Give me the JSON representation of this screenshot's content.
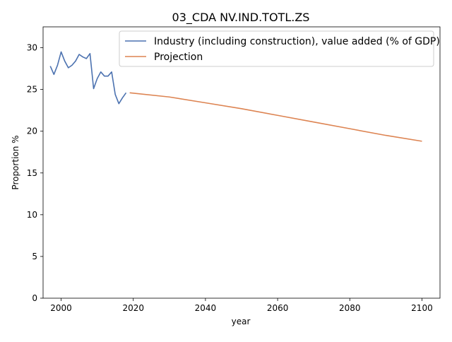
{
  "chart_data": {
    "type": "line",
    "title": "03_CDA NV.IND.TOTL.ZS",
    "xlabel": "year",
    "ylabel": "Proportion %",
    "xlim": [
      1995,
      2105
    ],
    "ylim": [
      0,
      32.5
    ],
    "xticks": [
      2000,
      2020,
      2040,
      2060,
      2080,
      2100
    ],
    "yticks": [
      0,
      5,
      10,
      15,
      20,
      25,
      30
    ],
    "grid": false,
    "legend_position": "top-right",
    "series": [
      {
        "name": "Industry (including construction), value added (% of GDP)",
        "color": "#4c72b0",
        "x": [
          1997,
          1998,
          1999,
          2000,
          2001,
          2002,
          2003,
          2004,
          2005,
          2006,
          2007,
          2008,
          2009,
          2010,
          2011,
          2012,
          2013,
          2014,
          2015,
          2016,
          2017,
          2018
        ],
        "y": [
          27.8,
          26.8,
          27.9,
          29.5,
          28.4,
          27.6,
          27.9,
          28.4,
          29.2,
          28.9,
          28.7,
          29.3,
          25.1,
          26.3,
          27.1,
          26.6,
          26.6,
          27.1,
          24.4,
          23.3,
          24.0,
          24.6
        ]
      },
      {
        "name": "Projection",
        "color": "#dd8452",
        "x": [
          2019,
          2030,
          2040,
          2050,
          2060,
          2070,
          2080,
          2090,
          2100
        ],
        "y": [
          24.6,
          24.1,
          23.4,
          22.7,
          21.9,
          21.1,
          20.3,
          19.5,
          18.8
        ]
      }
    ]
  }
}
